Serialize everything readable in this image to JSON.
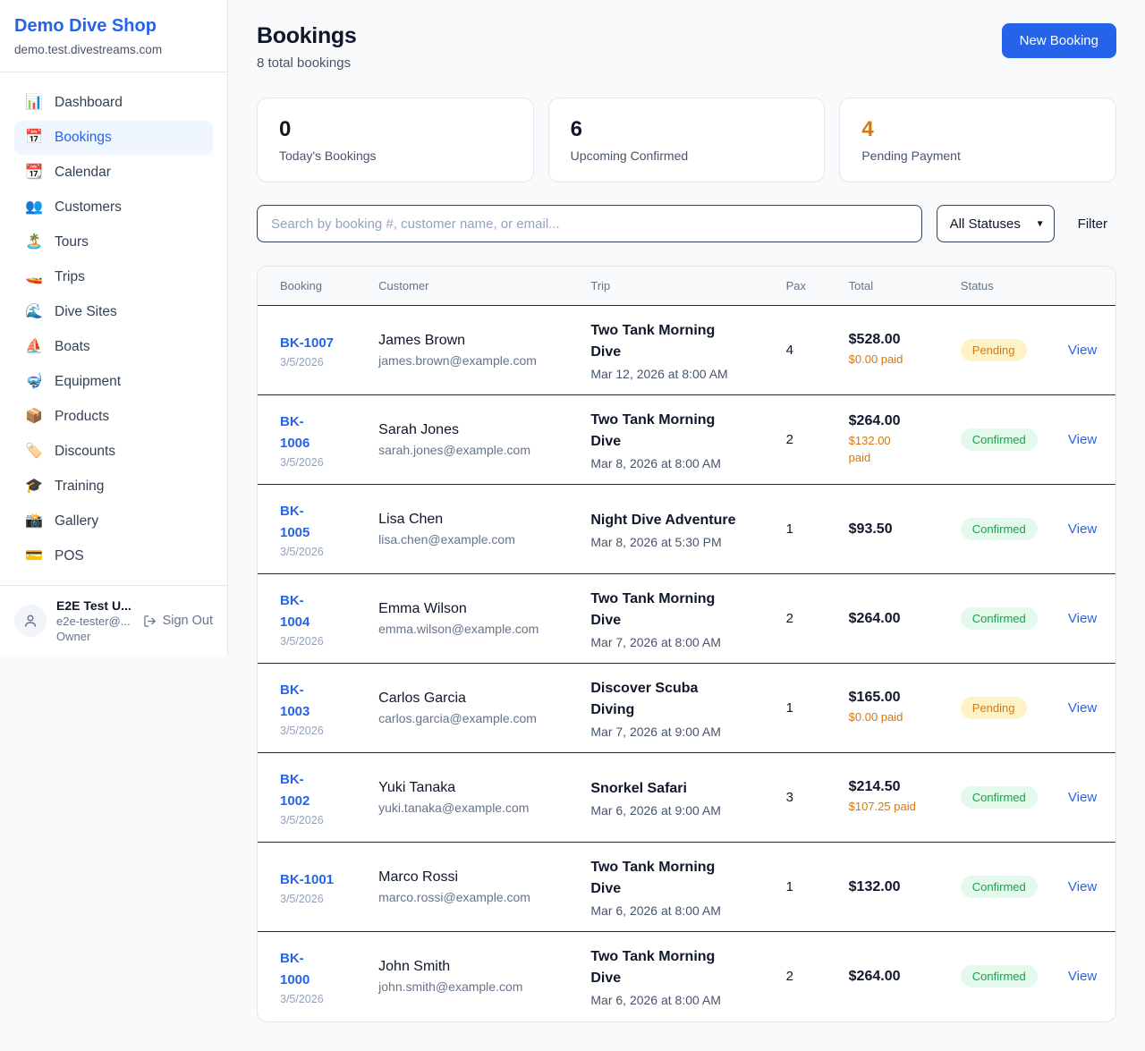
{
  "colors": {
    "accent": "#2563eb",
    "page-bg": "#f8fafc",
    "card-border": "#e2e8f0",
    "divider-dark": "#1e293b",
    "header-bg": "#f8fafc",
    "text-dark": "#0f172a",
    "orange": "#d97706",
    "pending-bg": "#fef3c7",
    "pending-text": "#d97706",
    "confirmed-bg": "#e3f9eb",
    "confirmed-text": "#16a34a"
  },
  "sidebar": {
    "brand": "Demo Dive Shop",
    "domain": "demo.test.divestreams.com",
    "items": [
      {
        "label": "Dashboard",
        "icon": "📊",
        "icon_name": "bar-chart-icon",
        "active": false
      },
      {
        "label": "Bookings",
        "icon": "📅",
        "icon_name": "calendar-icon",
        "active": true
      },
      {
        "label": "Calendar",
        "icon": "📆",
        "icon_name": "tear-off-calendar-icon",
        "active": false
      },
      {
        "label": "Customers",
        "icon": "👥",
        "icon_name": "people-icon",
        "active": false
      },
      {
        "label": "Tours",
        "icon": "🏝️",
        "icon_name": "island-icon",
        "active": false
      },
      {
        "label": "Trips",
        "icon": "🚤",
        "icon_name": "speedboat-icon",
        "active": false
      },
      {
        "label": "Dive Sites",
        "icon": "🌊",
        "icon_name": "wave-icon",
        "active": false
      },
      {
        "label": "Boats",
        "icon": "⛵",
        "icon_name": "sailboat-icon",
        "active": false
      },
      {
        "label": "Equipment",
        "icon": "🤿",
        "icon_name": "diving-mask-icon",
        "active": false
      },
      {
        "label": "Products",
        "icon": "📦",
        "icon_name": "package-icon",
        "active": false
      },
      {
        "label": "Discounts",
        "icon": "🏷️",
        "icon_name": "tag-icon",
        "active": false
      },
      {
        "label": "Training",
        "icon": "🎓",
        "icon_name": "graduation-cap-icon",
        "active": false
      },
      {
        "label": "Gallery",
        "icon": "📸",
        "icon_name": "camera-flash-icon",
        "active": false
      },
      {
        "label": "POS",
        "icon": "💳",
        "icon_name": "credit-card-icon",
        "active": false
      }
    ],
    "user": {
      "name": "E2E Test U...",
      "email": "e2e-tester@...",
      "role": "Owner",
      "sign_out_label": "Sign Out"
    }
  },
  "header": {
    "title": "Bookings",
    "subtitle": "8 total bookings",
    "new_booking_label": "New Booking"
  },
  "stats": [
    {
      "value": "0",
      "label": "Today's Bookings",
      "value_color": "#0f172a"
    },
    {
      "value": "6",
      "label": "Upcoming Confirmed",
      "value_color": "#0f172a"
    },
    {
      "value": "4",
      "label": "Pending Payment",
      "value_color": "#d97706"
    }
  ],
  "filters": {
    "search_placeholder": "Search by booking #, customer name, or email...",
    "status_selected": "All Statuses",
    "filter_label": "Filter"
  },
  "table": {
    "columns": [
      "Booking",
      "Customer",
      "Trip",
      "Pax",
      "Total",
      "Status"
    ],
    "view_label": "View",
    "rows": [
      {
        "number_lines": [
          "BK-1007"
        ],
        "date": "3/5/2026",
        "customer": "James Brown",
        "email": "james.brown@example.com",
        "trip_lines": [
          "Two Tank Morning",
          "Dive"
        ],
        "trip_datetime": "Mar 12, 2026 at 8:00 AM",
        "pax": "4",
        "total": "$528.00",
        "paid_lines": [
          "$0.00 paid"
        ],
        "status": "Pending"
      },
      {
        "number_lines": [
          "BK-",
          "1006"
        ],
        "date": "3/5/2026",
        "customer": "Sarah Jones",
        "email": "sarah.jones@example.com",
        "trip_lines": [
          "Two Tank Morning",
          "Dive"
        ],
        "trip_datetime": "Mar 8, 2026 at 8:00 AM",
        "pax": "2",
        "total": "$264.00",
        "paid_lines": [
          "$132.00",
          "paid"
        ],
        "status": "Confirmed"
      },
      {
        "number_lines": [
          "BK-",
          "1005"
        ],
        "date": "3/5/2026",
        "customer": "Lisa Chen",
        "email": "lisa.chen@example.com",
        "trip_lines": [
          "Night Dive Adventure"
        ],
        "trip_datetime": "Mar 8, 2026 at 5:30 PM",
        "pax": "1",
        "total": "$93.50",
        "paid_lines": [],
        "status": "Confirmed"
      },
      {
        "number_lines": [
          "BK-",
          "1004"
        ],
        "date": "3/5/2026",
        "customer": "Emma Wilson",
        "email": "emma.wilson@example.com",
        "trip_lines": [
          "Two Tank Morning",
          "Dive"
        ],
        "trip_datetime": "Mar 7, 2026 at 8:00 AM",
        "pax": "2",
        "total": "$264.00",
        "paid_lines": [],
        "status": "Confirmed"
      },
      {
        "number_lines": [
          "BK-",
          "1003"
        ],
        "date": "3/5/2026",
        "customer": "Carlos Garcia",
        "email": "carlos.garcia@example.com",
        "trip_lines": [
          "Discover Scuba",
          "Diving"
        ],
        "trip_datetime": "Mar 7, 2026 at 9:00 AM",
        "pax": "1",
        "total": "$165.00",
        "paid_lines": [
          "$0.00 paid"
        ],
        "status": "Pending"
      },
      {
        "number_lines": [
          "BK-",
          "1002"
        ],
        "date": "3/5/2026",
        "customer": "Yuki Tanaka",
        "email": "yuki.tanaka@example.com",
        "trip_lines": [
          "Snorkel Safari"
        ],
        "trip_datetime": "Mar 6, 2026 at 9:00 AM",
        "pax": "3",
        "total": "$214.50",
        "paid_lines": [
          "$107.25 paid"
        ],
        "status": "Confirmed"
      },
      {
        "number_lines": [
          "BK-1001"
        ],
        "date": "3/5/2026",
        "customer": "Marco Rossi",
        "email": "marco.rossi@example.com",
        "trip_lines": [
          "Two Tank Morning",
          "Dive"
        ],
        "trip_datetime": "Mar 6, 2026 at 8:00 AM",
        "pax": "1",
        "total": "$132.00",
        "paid_lines": [],
        "status": "Confirmed"
      },
      {
        "number_lines": [
          "BK-",
          "1000"
        ],
        "date": "3/5/2026",
        "customer": "John Smith",
        "email": "john.smith@example.com",
        "trip_lines": [
          "Two Tank Morning",
          "Dive"
        ],
        "trip_datetime": "Mar 6, 2026 at 8:00 AM",
        "pax": "2",
        "total": "$264.00",
        "paid_lines": [],
        "status": "Confirmed"
      }
    ]
  }
}
